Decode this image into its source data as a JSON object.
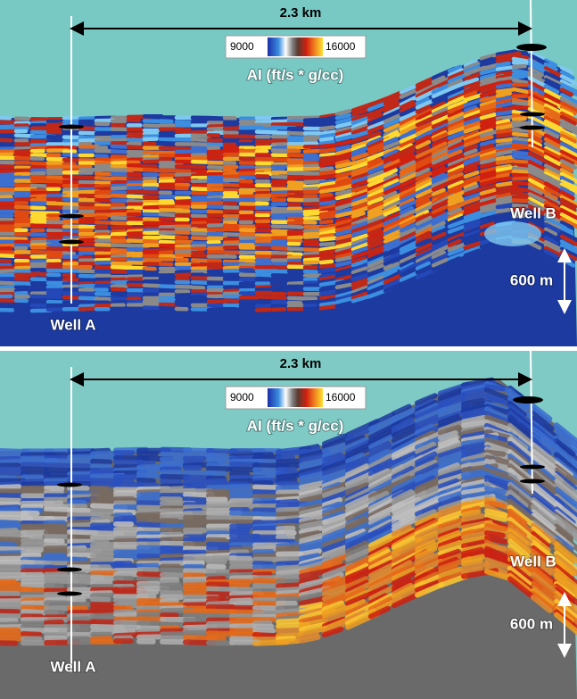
{
  "panels": [
    {
      "scale_label": "2.3 km",
      "colorbar": {
        "min": 9000,
        "max": 16000,
        "label": "AI (ft/s * g/cc)"
      },
      "wells": [
        "Well A",
        "Well B"
      ],
      "depth_scale": "600 m"
    },
    {
      "scale_label": "2.3 km",
      "colorbar": {
        "min": 9000,
        "max": 16000,
        "label": "AI (ft/s * g/cc)"
      },
      "wells": [
        "Well A",
        "Well B"
      ],
      "depth_scale": "600 m"
    }
  ]
}
